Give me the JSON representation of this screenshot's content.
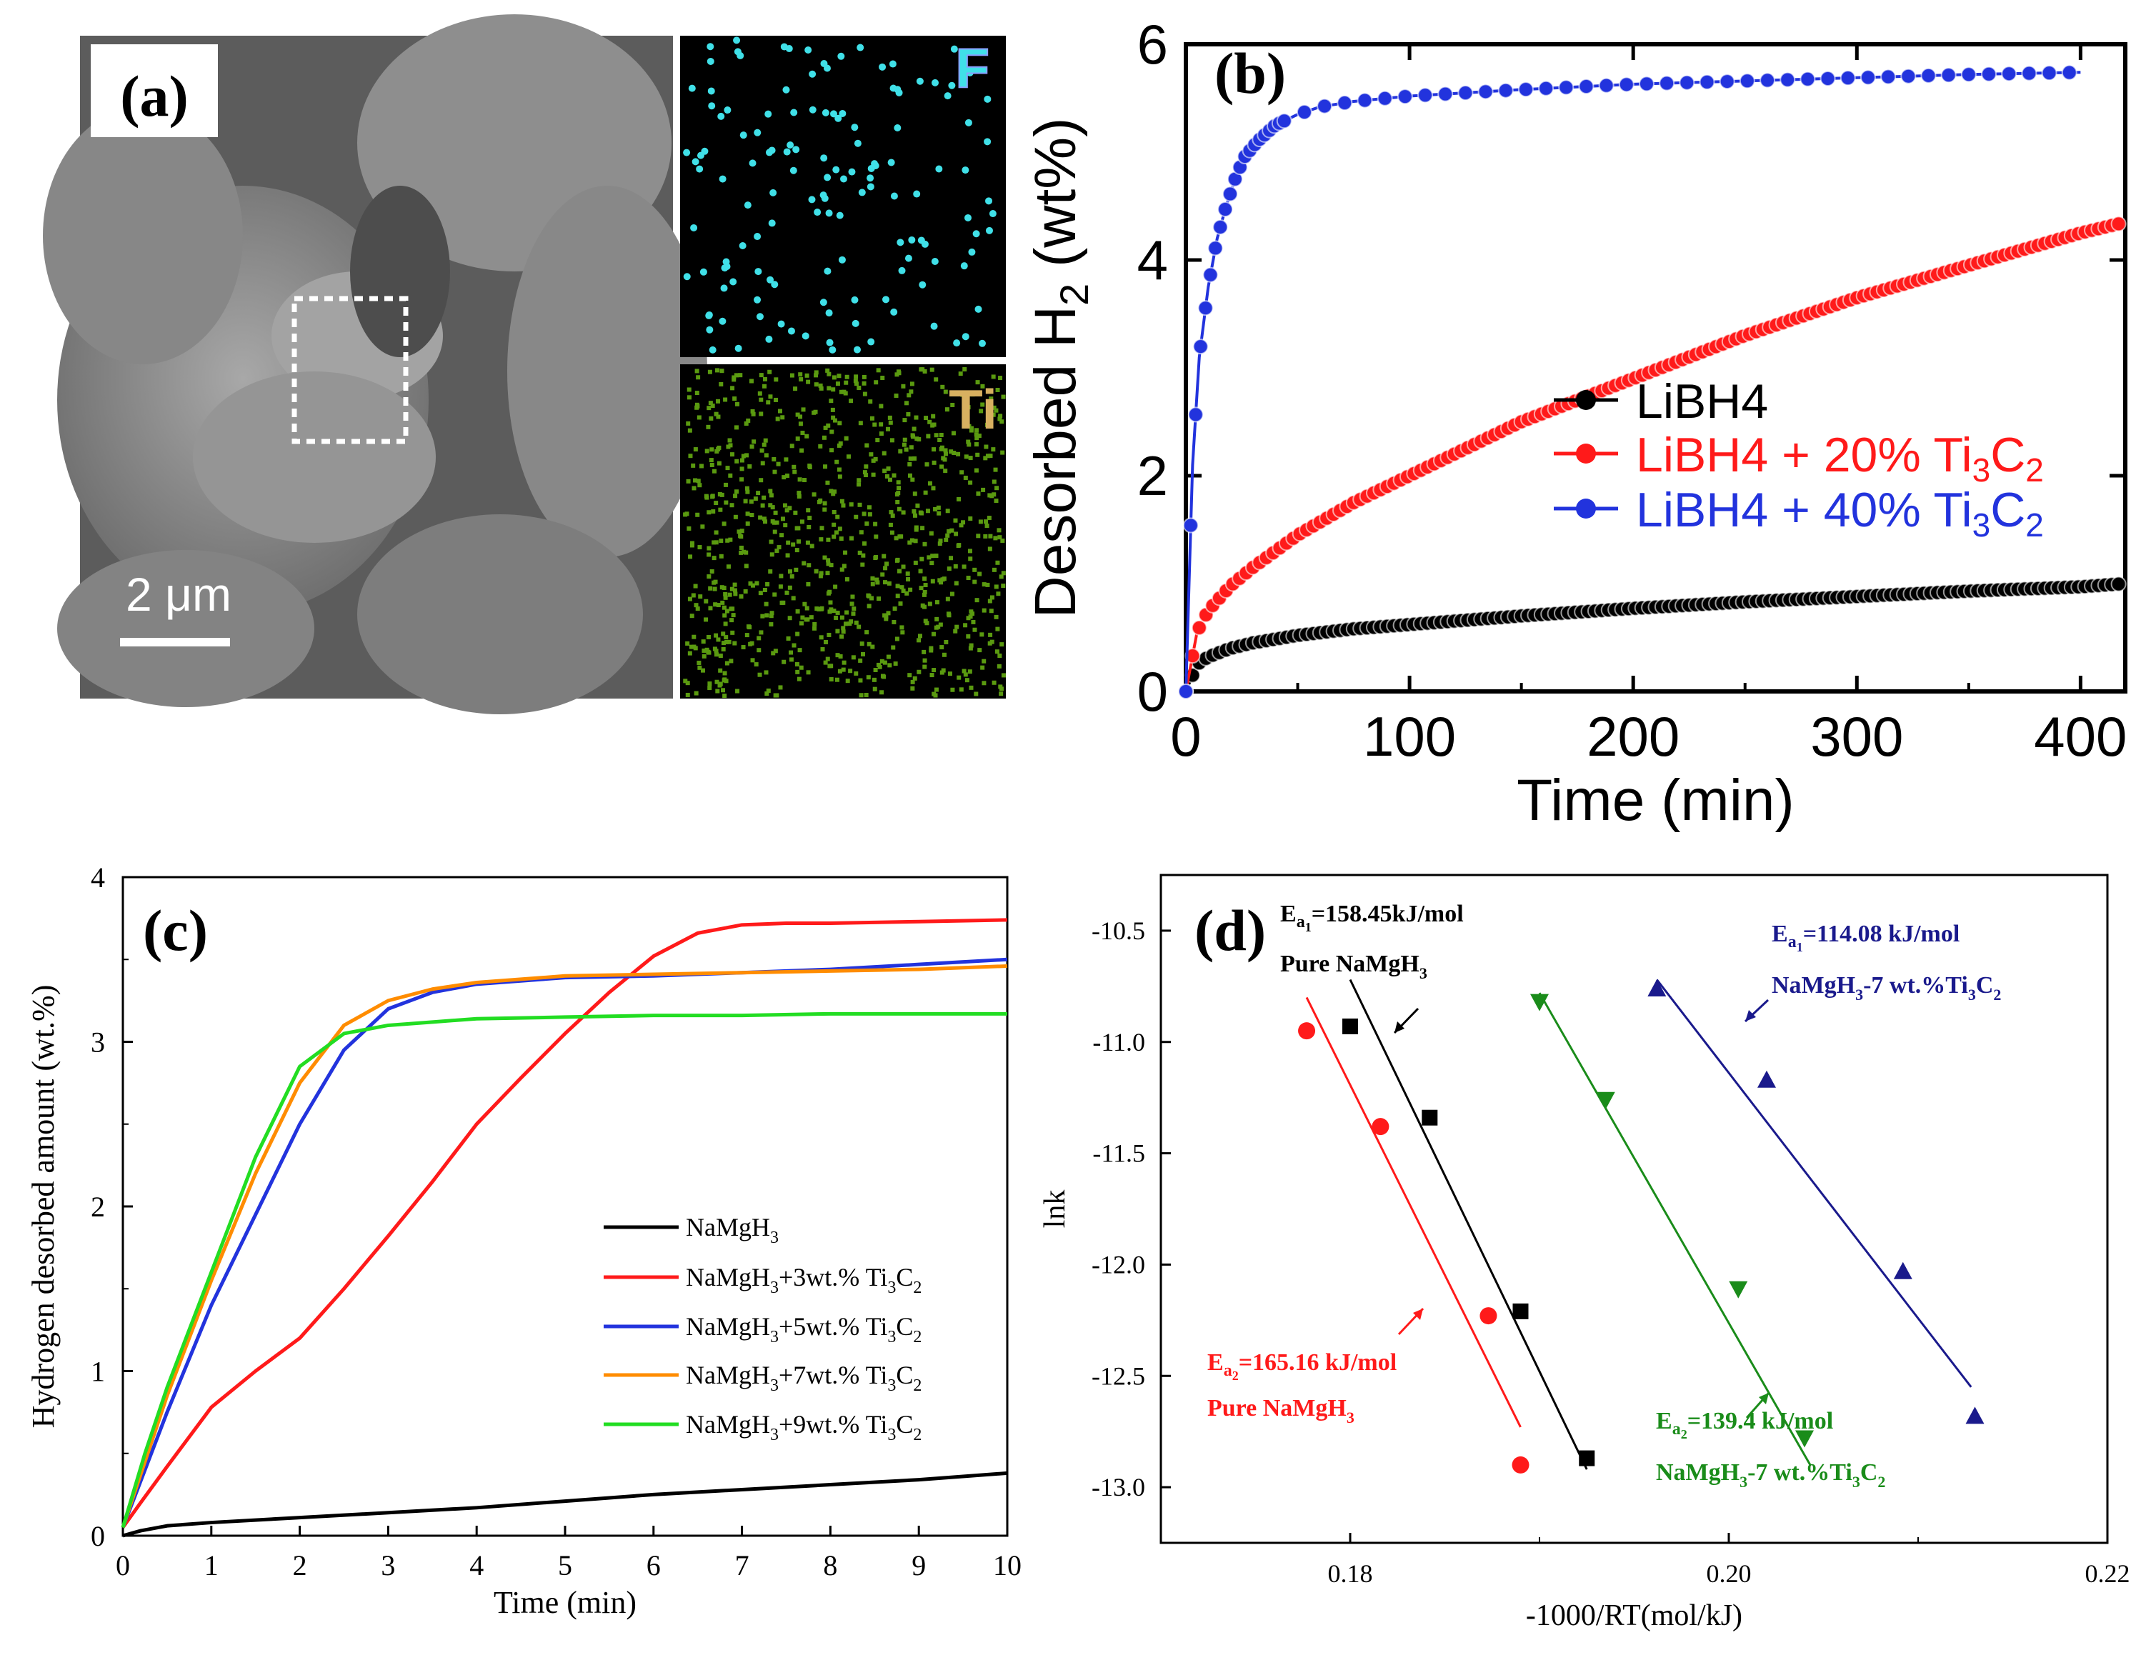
{
  "panels": {
    "a": {
      "label": "(a)",
      "scale_bar": "2 μm",
      "map_f": "F",
      "map_ti": "Ti"
    },
    "b": {
      "label": "(b)"
    },
    "c": {
      "label": "(c)"
    },
    "d": {
      "label": "(d)",
      "ann_black_1": "E",
      "ann_black_1_sub": "a",
      "ann_black_1_subsub": "1",
      "ann_black_1_val": "=158.45kJ/mol",
      "ann_black_2": "Pure NaMgH",
      "ann_black_2_sub": "3",
      "ann_red_1": "E",
      "ann_red_1_sub": "a",
      "ann_red_1_subsub": "2",
      "ann_red_1_val": "=165.16 kJ/mol",
      "ann_red_2": "Pure NaMgH",
      "ann_red_2_sub": "3",
      "ann_blue_1": "E",
      "ann_blue_1_sub": "a",
      "ann_blue_1_subsub": "1",
      "ann_blue_1_val": "=114.08 kJ/mol",
      "ann_blue_2a": "NaMgH",
      "ann_blue_2_sub3": "3",
      "ann_blue_2b": "-7 wt.%Ti",
      "ann_blue_2_sub3b": "3",
      "ann_blue_2c": "C",
      "ann_blue_2_sub2": "2",
      "ann_green_1": "E",
      "ann_green_1_sub": "a",
      "ann_green_1_subsub": "2",
      "ann_green_1_val": "=139.4 kJ/mol",
      "ann_green_2a": "NaMgH",
      "ann_green_2_sub3": "3",
      "ann_green_2b": "-7 wt.%Ti",
      "ann_green_2_sub3b": "3",
      "ann_green_2c": "C",
      "ann_green_2_sub2": "2"
    }
  },
  "colors": {
    "black": "#000000",
    "red": "#ff1a1a",
    "blue": "#2233dd",
    "orange": "#ff8c00",
    "green": "#22dd22",
    "darkgreen": "#1a8c1a",
    "navy": "#1a1a8c",
    "cyan": "#40e0e8",
    "limegreen": "#5a9a10"
  },
  "chart_data": [
    {
      "id": "b",
      "type": "scatter",
      "xlabel": "Time (min)",
      "ylabel": "Desorbed H",
      "ylabel_sub": "2",
      "ylabel_tail": " (wt%)",
      "xlim": [
        0,
        420
      ],
      "ylim": [
        0,
        6
      ],
      "xticks": [
        0,
        100,
        200,
        300,
        400
      ],
      "yticks": [
        0,
        2,
        4,
        6
      ],
      "legend": [
        {
          "name": "LiBH4",
          "sub": "",
          "tail": "",
          "color": "#000000"
        },
        {
          "name": "LiBH4 + 20% Ti",
          "sub": "3",
          "tail": "C",
          "sub2": "2",
          "color": "#ff1a1a"
        },
        {
          "name": "LiBH4 + 40% Ti",
          "sub": "3",
          "tail": "C",
          "sub2": "2",
          "color": "#2233dd"
        }
      ],
      "series": [
        {
          "name": "LiBH4",
          "color": "#000000",
          "x": [
            0,
            5,
            10,
            20,
            30,
            50,
            75,
            100,
            150,
            200,
            250,
            300,
            350,
            400,
            420
          ],
          "y": [
            0,
            0.25,
            0.32,
            0.4,
            0.45,
            0.52,
            0.58,
            0.62,
            0.7,
            0.77,
            0.83,
            0.88,
            0.93,
            0.97,
            1.0
          ]
        },
        {
          "name": "LiBH4 + 20% Ti3C2",
          "color": "#ff1a1a",
          "x": [
            0,
            5,
            10,
            20,
            30,
            50,
            75,
            100,
            150,
            200,
            250,
            300,
            350,
            400,
            420
          ],
          "y": [
            0,
            0.55,
            0.75,
            0.98,
            1.15,
            1.45,
            1.75,
            2.0,
            2.5,
            2.9,
            3.3,
            3.65,
            3.95,
            4.25,
            4.35
          ]
        },
        {
          "name": "LiBH4 + 40% Ti3C2",
          "color": "#2233dd",
          "x": [
            0,
            3,
            6,
            10,
            14,
            18,
            22,
            26,
            32,
            40,
            50,
            60,
            75,
            100,
            150,
            200,
            250,
            300,
            350,
            400
          ],
          "y": [
            0,
            2.1,
            3.1,
            3.75,
            4.2,
            4.5,
            4.75,
            4.95,
            5.1,
            5.25,
            5.35,
            5.42,
            5.47,
            5.52,
            5.58,
            5.63,
            5.66,
            5.69,
            5.72,
            5.74
          ]
        }
      ]
    },
    {
      "id": "c",
      "type": "line",
      "xlabel": "Time (min)",
      "ylabel": "Hydrogen desorbed amount (wt.%)",
      "xlim": [
        0,
        10
      ],
      "ylim": [
        0,
        4
      ],
      "xticks": [
        0,
        1,
        2,
        3,
        4,
        5,
        6,
        7,
        8,
        9,
        10
      ],
      "yticks": [
        0,
        1,
        2,
        3,
        4
      ],
      "legend": [
        {
          "name": "NaMgH",
          "sub": "3",
          "tail": "",
          "color": "#000000"
        },
        {
          "name": "NaMgH",
          "sub": "3",
          "tail": "+3wt.% Ti",
          "sub2": "3",
          "tail2": "C",
          "sub3": "2",
          "color": "#ff1a1a"
        },
        {
          "name": "NaMgH",
          "sub": "3",
          "tail": "+5wt.% Ti",
          "sub2": "3",
          "tail2": "C",
          "sub3": "2",
          "color": "#2233dd"
        },
        {
          "name": "NaMgH",
          "sub": "3",
          "tail": "+7wt.% Ti",
          "sub2": "3",
          "tail2": "C",
          "sub3": "2",
          "color": "#ff8c00"
        },
        {
          "name": "NaMgH",
          "sub": "3",
          "tail": "+9wt.% Ti",
          "sub2": "3",
          "tail2": "C",
          "sub3": "2",
          "color": "#22dd22"
        }
      ],
      "series": [
        {
          "name": "NaMgH3",
          "color": "#000000",
          "x": [
            0,
            0.2,
            0.5,
            1,
            2,
            3,
            4,
            5,
            6,
            7,
            8,
            9,
            10
          ],
          "y": [
            0,
            0.03,
            0.06,
            0.08,
            0.11,
            0.14,
            0.17,
            0.21,
            0.25,
            0.28,
            0.31,
            0.34,
            0.38
          ]
        },
        {
          "name": "NaMgH3+3wt.% Ti3C2",
          "color": "#ff1a1a",
          "x": [
            0,
            0.2,
            0.5,
            1,
            1.5,
            2,
            2.5,
            3,
            3.5,
            4,
            4.5,
            5,
            5.5,
            6,
            6.5,
            7,
            7.5,
            8,
            9,
            10
          ],
          "y": [
            0.05,
            0.2,
            0.42,
            0.78,
            1.0,
            1.2,
            1.5,
            1.82,
            2.15,
            2.5,
            2.78,
            3.05,
            3.3,
            3.52,
            3.66,
            3.71,
            3.72,
            3.72,
            3.73,
            3.74
          ]
        },
        {
          "name": "NaMgH3+5wt.% Ti3C2",
          "color": "#2233dd",
          "x": [
            0,
            0.25,
            0.5,
            1,
            1.5,
            2,
            2.5,
            3,
            3.5,
            4,
            5,
            6,
            7,
            8,
            9,
            10
          ],
          "y": [
            0.05,
            0.4,
            0.75,
            1.4,
            1.95,
            2.5,
            2.95,
            3.2,
            3.3,
            3.35,
            3.39,
            3.4,
            3.42,
            3.44,
            3.47,
            3.5
          ]
        },
        {
          "name": "NaMgH3+7wt.% Ti3C2",
          "color": "#ff8c00",
          "x": [
            0,
            0.25,
            0.5,
            1,
            1.5,
            2,
            2.5,
            3,
            3.5,
            4,
            5,
            6,
            7,
            8,
            9,
            10
          ],
          "y": [
            0.05,
            0.45,
            0.85,
            1.55,
            2.2,
            2.75,
            3.1,
            3.25,
            3.32,
            3.36,
            3.4,
            3.41,
            3.42,
            3.43,
            3.44,
            3.46
          ]
        },
        {
          "name": "NaMgH3+9wt.% Ti3C2",
          "color": "#22dd22",
          "x": [
            0,
            0.25,
            0.5,
            1,
            1.5,
            2,
            2.5,
            3,
            3.5,
            4,
            5,
            6,
            7,
            8,
            9,
            10
          ],
          "y": [
            0.05,
            0.5,
            0.9,
            1.6,
            2.3,
            2.85,
            3.05,
            3.1,
            3.12,
            3.14,
            3.15,
            3.16,
            3.16,
            3.17,
            3.17,
            3.17
          ]
        }
      ]
    },
    {
      "id": "d",
      "type": "scatter",
      "xlabel": "-1000/RT(mol/kJ)",
      "ylabel": "lnk",
      "xlim": [
        0.17,
        0.22
      ],
      "ylim": [
        -13.25,
        -10.25
      ],
      "xticks": [
        0.18,
        0.2,
        0.22
      ],
      "xtick_labels": [
        "0.18",
        "0.20",
        "0.22"
      ],
      "yticks": [
        -10.5,
        -11.0,
        -11.5,
        -12.0,
        -12.5,
        -13.0
      ],
      "ytick_labels": [
        "-10.5",
        "-11.0",
        "-11.5",
        "-12.0",
        "-12.5",
        "-13.0"
      ],
      "series": [
        {
          "name": "Pure NaMgH3 (Ea1)",
          "color": "#000000",
          "marker": "square",
          "x": [
            0.18,
            0.1842,
            0.189,
            0.1925
          ],
          "y": [
            -10.93,
            -11.34,
            -12.21,
            -12.87
          ],
          "fit": {
            "x": [
              0.18,
              0.1925
            ],
            "y": [
              -10.72,
              -12.92
            ]
          }
        },
        {
          "name": "Pure NaMgH3 (Ea2)",
          "color": "#ff1a1a",
          "marker": "circle",
          "x": [
            0.1777,
            0.1816,
            0.1873,
            0.189
          ],
          "y": [
            -10.95,
            -11.38,
            -12.23,
            -12.9
          ],
          "fit": {
            "x": [
              0.1777,
              0.189
            ],
            "y": [
              -10.8,
              -12.73
            ]
          }
        },
        {
          "name": "NaMgH3-7 wt.%Ti3C2 (Ea2)",
          "color": "#1a8c1a",
          "marker": "triangle-down",
          "x": [
            0.19,
            0.1935,
            0.2005,
            0.204
          ],
          "y": [
            -10.82,
            -11.26,
            -12.11,
            -12.78
          ],
          "fit": {
            "x": [
              0.19,
              0.2043
            ],
            "y": [
              -10.78,
              -12.9
            ]
          }
        },
        {
          "name": "NaMgH3-7 wt.%Ti3C2 (Ea1)",
          "color": "#1a1a8c",
          "marker": "triangle-up",
          "x": [
            0.1962,
            0.202,
            0.2092,
            0.213
          ],
          "y": [
            -10.76,
            -11.17,
            -12.03,
            -12.68
          ],
          "fit": {
            "x": [
              0.1962,
              0.2128
            ],
            "y": [
              -10.72,
              -12.55
            ]
          }
        }
      ]
    }
  ]
}
